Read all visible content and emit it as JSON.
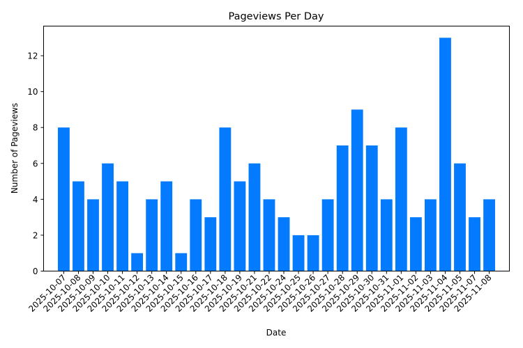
{
  "chart_data": {
    "type": "bar",
    "title": "Pageviews Per Day",
    "xlabel": "Date",
    "ylabel": "Number of Pageviews",
    "categories": [
      "2025-10-07",
      "2025-10-08",
      "2025-10-09",
      "2025-10-10",
      "2025-10-11",
      "2025-10-12",
      "2025-10-13",
      "2025-10-14",
      "2025-10-15",
      "2025-10-16",
      "2025-10-17",
      "2025-10-18",
      "2025-10-19",
      "2025-10-21",
      "2025-10-22",
      "2025-10-24",
      "2025-10-25",
      "2025-10-26",
      "2025-10-27",
      "2025-10-28",
      "2025-10-29",
      "2025-10-30",
      "2025-10-31",
      "2025-11-01",
      "2025-11-02",
      "2025-11-03",
      "2025-11-04",
      "2025-11-05",
      "2025-11-07",
      "2025-11-08"
    ],
    "values": [
      8,
      5,
      4,
      6,
      5,
      1,
      4,
      5,
      1,
      4,
      3,
      8,
      5,
      6,
      4,
      3,
      2,
      2,
      4,
      7,
      9,
      7,
      4,
      8,
      3,
      4,
      13,
      6,
      3,
      4
    ],
    "yticks": [
      0,
      2,
      4,
      6,
      8,
      10,
      12
    ],
    "ylim": [
      0,
      13.65
    ],
    "grid": false,
    "legend": null,
    "bar_color": "#047BFE",
    "x_tick_rotation": 45
  }
}
